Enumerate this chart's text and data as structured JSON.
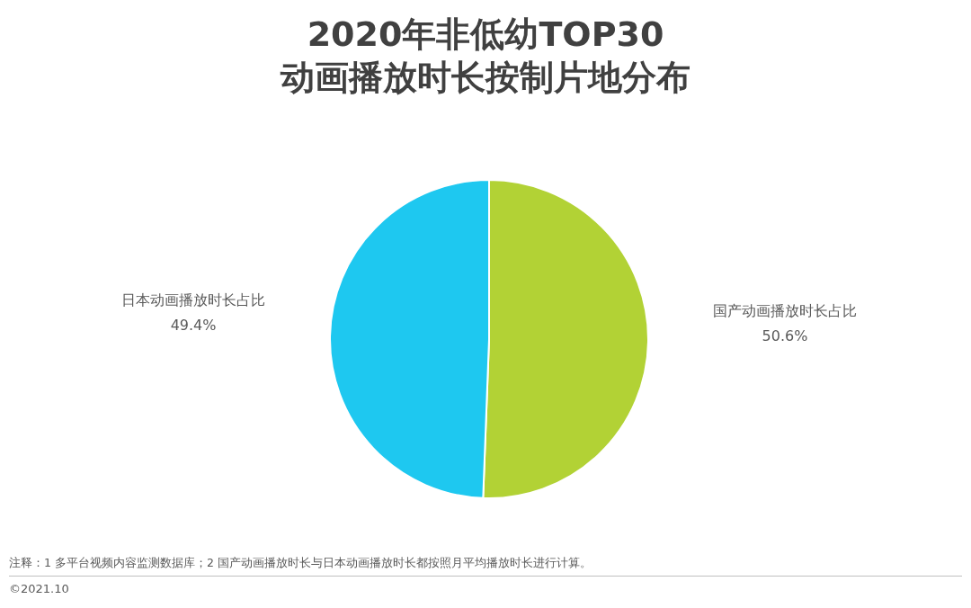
{
  "chart_data": {
    "type": "pie",
    "title": "2020年非低幼TOP30\n动画播放时长按制片地分布",
    "categories": [
      "国产动画播放时长占比",
      "日本动画播放时长占比"
    ],
    "values": [
      50.6,
      49.4
    ],
    "colors": [
      "#b2d235",
      "#1ec8f0"
    ],
    "value_labels": [
      "50.6%",
      "49.4%"
    ],
    "annotations": [
      "注释：1 多平台视频内容监测数据库；2 国产动画播放时长与日本动画播放时长都按照月平均播放时长进行计算。",
      "©2021.10"
    ]
  }
}
